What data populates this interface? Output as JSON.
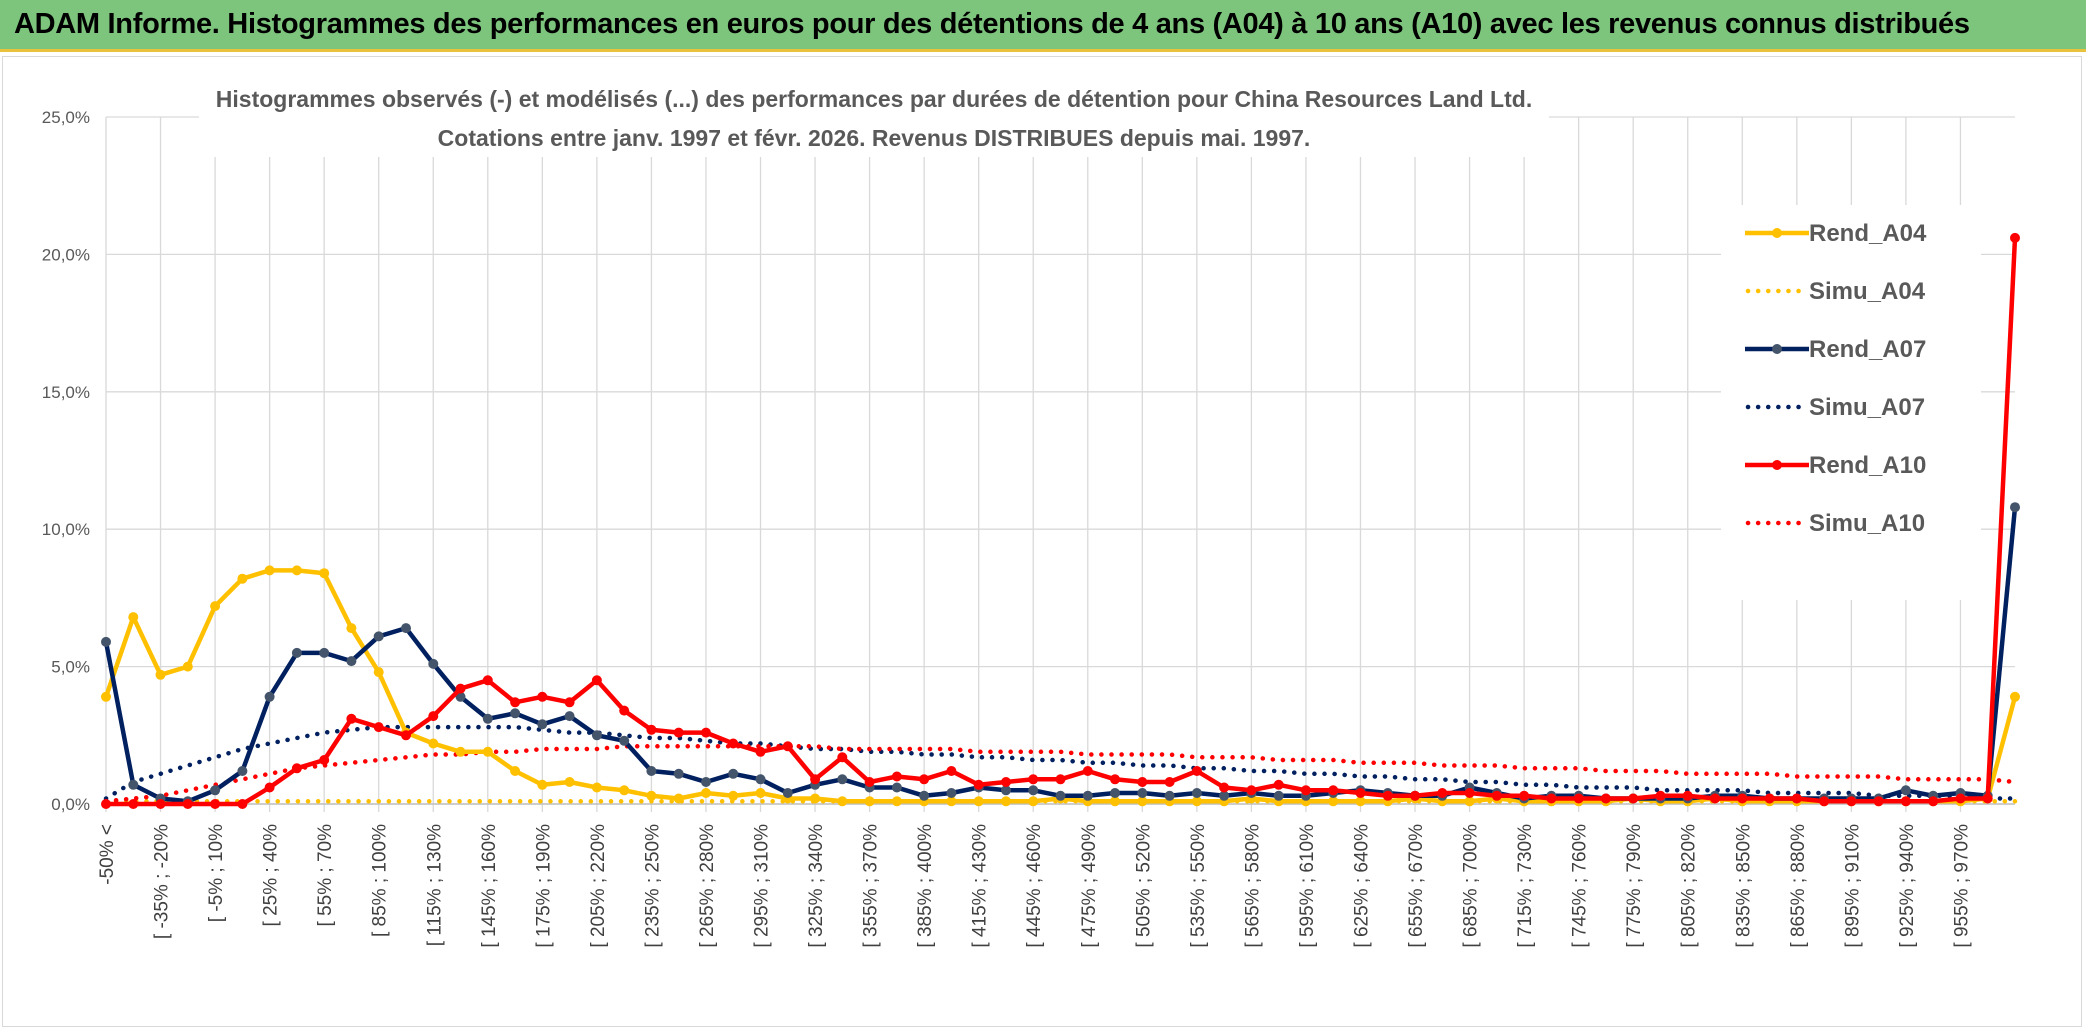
{
  "header": {
    "title": "ADAM Informe. Histogrammes des performances en euros pour des détentions de 4 ans (A04) à 10 ans (A10) avec les revenus connus distribués"
  },
  "chart_data": {
    "type": "line",
    "title_line1": "Histogrammes observés (-) et modélisés (...) des performances par durées de détention pour China Resources Land Ltd.",
    "title_line2": "Cotations entre janv. 1997 et févr. 2026. Revenus DISTRIBUES depuis mai. 1997.",
    "xlabel": "",
    "ylabel": "",
    "ylim": [
      0,
      25
    ],
    "y_ticks": [
      "0,0%",
      "5,0%",
      "10,0%",
      "15,0%",
      "20,0%",
      "25,0%"
    ],
    "grid": true,
    "legend_position": "right",
    "x_tick_labels": [
      "-50% <",
      "[ -35% ; -20%",
      "[ -5% ; 10%",
      "[ 25% ; 40%",
      "[ 55% ; 70%",
      "[ 85% ; 100%",
      "[ 115% ; 130%",
      "[ 145% ; 160%",
      "[ 175% ; 190%",
      "[ 205% ; 220%",
      "[ 235% ; 250%",
      "[ 265% ; 280%",
      "[ 295% ; 310%",
      "[ 325% ; 340%",
      "[ 355% ; 370%",
      "[ 385% ; 400%",
      "[ 415% ; 430%",
      "[ 445% ; 460%",
      "[ 475% ; 490%",
      "[ 505% ; 520%",
      "[ 535% ; 550%",
      "[ 565% ; 580%",
      "[ 595% ; 610%",
      "[ 625% ; 640%",
      "[ 655% ; 670%",
      "[ 685% ; 700%",
      "[ 715% ; 730%",
      "[ 745% ; 760%",
      "[ 775% ; 790%",
      "[ 805% ; 820%",
      "[ 835% ; 850%",
      "[ 865% ; 880%",
      "[ 895% ; 910%",
      "[ 925% ; 940%",
      "[ 955% ; 970%"
    ],
    "series": [
      {
        "name": "Rend_A04",
        "style": "solid",
        "color": "#ffc000",
        "values": [
          3.9,
          6.8,
          4.7,
          5.0,
          7.2,
          8.2,
          8.5,
          8.5,
          8.4,
          6.4,
          4.8,
          2.6,
          2.2,
          1.9,
          1.9,
          1.2,
          0.7,
          0.8,
          0.6,
          0.5,
          0.3,
          0.2,
          0.4,
          0.3,
          0.4,
          0.2,
          0.2,
          0.1,
          0.1,
          0.1,
          0.1,
          0.1,
          0.1,
          0.1,
          0.1,
          0.2,
          0.1,
          0.1,
          0.1,
          0.1,
          0.1,
          0.1,
          0.2,
          0.1,
          0.1,
          0.1,
          0.1,
          0.1,
          0.2,
          0.1,
          0.1,
          0.2,
          0.1,
          0.1,
          0.1,
          0.1,
          0.2,
          0.1,
          0.1,
          0.2,
          0.1,
          0.1,
          0.1,
          0.1,
          0.1,
          0.1,
          0.1,
          0.1,
          0.1,
          0.2,
          3.9
        ]
      },
      {
        "name": "Simu_A04",
        "style": "dotted",
        "color": "#ffc000",
        "values": [
          0.1,
          0.1,
          0.1,
          0.1,
          0.1,
          0.1,
          0.1,
          0.1,
          0.1,
          0.1,
          0.1,
          0.1,
          0.1,
          0.1,
          0.1,
          0.1,
          0.1,
          0.1,
          0.1,
          0.1,
          0.1,
          0.1,
          0.1,
          0.1,
          0.1,
          0.1,
          0.1,
          0.1,
          0.1,
          0.1,
          0.1,
          0.1,
          0.1,
          0.1,
          0.1,
          0.1,
          0.1,
          0.1,
          0.1,
          0.1,
          0.1,
          0.1,
          0.1,
          0.1,
          0.1,
          0.1,
          0.1,
          0.1,
          0.1,
          0.1,
          0.1,
          0.1,
          0.1,
          0.1,
          0.1,
          0.1,
          0.1,
          0.1,
          0.1,
          0.1,
          0.1,
          0.1,
          0.1,
          0.1,
          0.1,
          0.1,
          0.1,
          0.1,
          0.1,
          0.1,
          0.1
        ]
      },
      {
        "name": "Rend_A07",
        "style": "solid",
        "color": "#002060",
        "values": [
          5.9,
          0.7,
          0.2,
          0.1,
          0.5,
          1.2,
          3.9,
          5.5,
          5.5,
          5.2,
          6.1,
          6.4,
          5.1,
          3.9,
          3.1,
          3.3,
          2.9,
          3.2,
          2.5,
          2.3,
          1.2,
          1.1,
          0.8,
          1.1,
          0.9,
          0.4,
          0.7,
          0.9,
          0.6,
          0.6,
          0.3,
          0.4,
          0.6,
          0.5,
          0.5,
          0.3,
          0.3,
          0.4,
          0.4,
          0.3,
          0.4,
          0.3,
          0.4,
          0.3,
          0.3,
          0.4,
          0.5,
          0.4,
          0.3,
          0.3,
          0.6,
          0.4,
          0.2,
          0.3,
          0.3,
          0.2,
          0.2,
          0.2,
          0.2,
          0.3,
          0.3,
          0.2,
          0.2,
          0.2,
          0.2,
          0.2,
          0.5,
          0.3,
          0.4,
          0.3,
          10.8
        ]
      },
      {
        "name": "Simu_A07",
        "style": "dotted",
        "color": "#002060",
        "values": [
          0.2,
          0.8,
          1.1,
          1.4,
          1.7,
          2.0,
          2.2,
          2.4,
          2.6,
          2.7,
          2.8,
          2.8,
          2.8,
          2.8,
          2.8,
          2.8,
          2.7,
          2.6,
          2.6,
          2.5,
          2.4,
          2.4,
          2.3,
          2.2,
          2.2,
          2.1,
          2.0,
          2.0,
          1.9,
          1.9,
          1.8,
          1.8,
          1.7,
          1.7,
          1.6,
          1.6,
          1.5,
          1.5,
          1.4,
          1.4,
          1.3,
          1.3,
          1.2,
          1.2,
          1.1,
          1.1,
          1.0,
          1.0,
          0.9,
          0.9,
          0.8,
          0.8,
          0.7,
          0.7,
          0.6,
          0.6,
          0.6,
          0.5,
          0.5,
          0.5,
          0.5,
          0.4,
          0.4,
          0.4,
          0.4,
          0.3,
          0.3,
          0.3,
          0.3,
          0.2,
          0.2
        ]
      },
      {
        "name": "Rend_A10",
        "style": "solid",
        "color": "#ff0000",
        "values": [
          0.0,
          0.0,
          0.0,
          0.0,
          0.0,
          0.0,
          0.6,
          1.3,
          1.6,
          3.1,
          2.8,
          2.5,
          3.2,
          4.2,
          4.5,
          3.7,
          3.9,
          3.7,
          4.5,
          3.4,
          2.7,
          2.6,
          2.6,
          2.2,
          1.9,
          2.1,
          0.9,
          1.7,
          0.8,
          1.0,
          0.9,
          1.2,
          0.7,
          0.8,
          0.9,
          0.9,
          1.2,
          0.9,
          0.8,
          0.8,
          1.2,
          0.6,
          0.5,
          0.7,
          0.5,
          0.5,
          0.4,
          0.3,
          0.3,
          0.4,
          0.4,
          0.3,
          0.3,
          0.2,
          0.2,
          0.2,
          0.2,
          0.3,
          0.3,
          0.2,
          0.2,
          0.2,
          0.2,
          0.1,
          0.1,
          0.1,
          0.1,
          0.1,
          0.2,
          0.2,
          20.6
        ]
      },
      {
        "name": "Simu_A10",
        "style": "dotted",
        "color": "#ff0000",
        "values": [
          0.1,
          0.2,
          0.3,
          0.5,
          0.7,
          0.9,
          1.1,
          1.3,
          1.4,
          1.5,
          1.6,
          1.7,
          1.8,
          1.8,
          1.9,
          1.9,
          2.0,
          2.0,
          2.0,
          2.1,
          2.1,
          2.1,
          2.1,
          2.1,
          2.1,
          2.1,
          2.1,
          2.0,
          2.0,
          2.0,
          2.0,
          2.0,
          1.9,
          1.9,
          1.9,
          1.9,
          1.8,
          1.8,
          1.8,
          1.8,
          1.7,
          1.7,
          1.7,
          1.6,
          1.6,
          1.6,
          1.5,
          1.5,
          1.5,
          1.4,
          1.4,
          1.4,
          1.3,
          1.3,
          1.3,
          1.2,
          1.2,
          1.2,
          1.1,
          1.1,
          1.1,
          1.1,
          1.0,
          1.0,
          1.0,
          1.0,
          0.9,
          0.9,
          0.9,
          0.9,
          0.8
        ]
      }
    ]
  }
}
